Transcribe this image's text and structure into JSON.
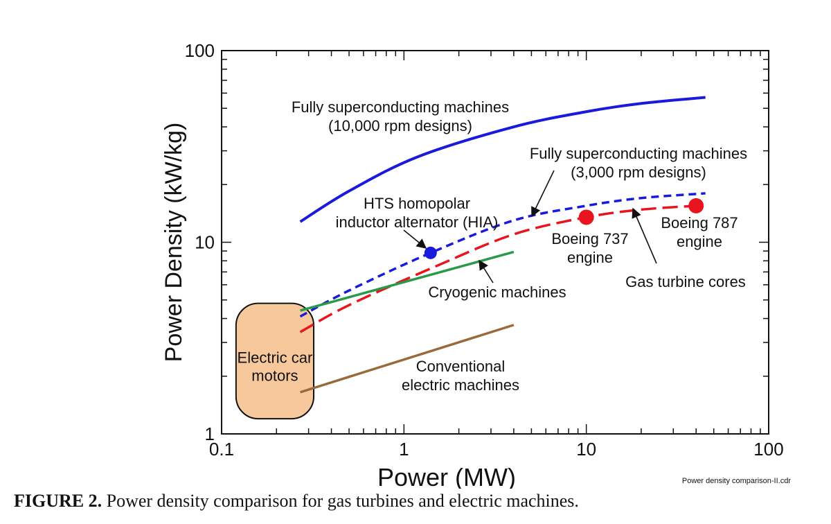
{
  "chart_data": {
    "type": "line",
    "xscale": "log",
    "yscale": "log",
    "xlim": [
      0.1,
      100
    ],
    "ylim": [
      1,
      100
    ],
    "xlabel": "Power (MW)",
    "ylabel": "Power Density (kW/kg)",
    "xticks": [
      "0.1",
      "1",
      "10",
      "100"
    ],
    "yticks": [
      "1",
      "10",
      "100"
    ],
    "colors": {
      "blue": "#1a1adc",
      "red": "#e8141e",
      "green": "#2a9a4a",
      "brown": "#9a6a3c",
      "car_fill": "#f6c89c"
    },
    "series": [
      {
        "name": "Fully superconducting machines (10,000 rpm designs)",
        "style": "solid",
        "color": "#1a1adc",
        "x": [
          0.27,
          0.5,
          1.2,
          4,
          10,
          20,
          45
        ],
        "y": [
          12.8,
          18.5,
          28,
          40,
          48,
          53,
          57
        ]
      },
      {
        "name": "Fully superconducting machines (3,000 rpm designs)",
        "style": "dashed",
        "color": "#1a1adc",
        "x": [
          0.27,
          0.5,
          1.4,
          4,
          10,
          20,
          45
        ],
        "y": [
          4.1,
          5.6,
          8.8,
          13,
          15.5,
          17,
          18
        ]
      },
      {
        "name": "Gas turbine cores",
        "style": "longdash",
        "color": "#e8141e",
        "x": [
          0.27,
          0.5,
          1.5,
          4,
          10,
          20,
          45
        ],
        "y": [
          3.4,
          4.7,
          7.5,
          11,
          13.5,
          14.8,
          15.6
        ]
      },
      {
        "name": "Cryogenic machines",
        "style": "solid",
        "color": "#2a9a4a",
        "x": [
          0.27,
          4
        ],
        "y": [
          4.4,
          8.9
        ]
      },
      {
        "name": "Conventional electric machines",
        "style": "solid",
        "color": "#9a6a3c",
        "x": [
          0.27,
          4
        ],
        "y": [
          1.65,
          3.7
        ]
      }
    ],
    "points": [
      {
        "name": "HTS homopolar inductor alternator (HIA)",
        "x": 1.4,
        "y": 8.8,
        "color": "#1a1adc"
      },
      {
        "name": "Boeing 737 engine",
        "x": 10,
        "y": 13.5,
        "color": "#e8141e"
      },
      {
        "name": "Boeing 787 engine",
        "x": 40,
        "y": 15.5,
        "color": "#e8141e"
      }
    ],
    "region": {
      "label_lines": [
        "Electric car",
        "motors"
      ],
      "x": [
        0.12,
        0.32
      ],
      "y": [
        1.2,
        4.8
      ]
    },
    "annotations": {
      "fsm10k": [
        "Fully superconducting machines",
        "(10,000 rpm designs)"
      ],
      "fsm3k": [
        "Fully superconducting machines",
        "(3,000 rpm designs)"
      ],
      "hia": [
        "HTS homopolar",
        "inductor alternator (HIA)"
      ],
      "b737": [
        "Boeing 737",
        "engine"
      ],
      "b787": [
        "Boeing 787",
        "engine"
      ],
      "gas": [
        "Gas turbine cores"
      ],
      "cryo": [
        "Cryogenic machines"
      ],
      "conv": [
        "Conventional",
        "electric machines"
      ]
    },
    "footer_note": "Power density comparison-II.cdr"
  },
  "caption": {
    "label": "FIGURE 2.",
    "text": "Power density comparison for gas turbines and electric machines."
  }
}
